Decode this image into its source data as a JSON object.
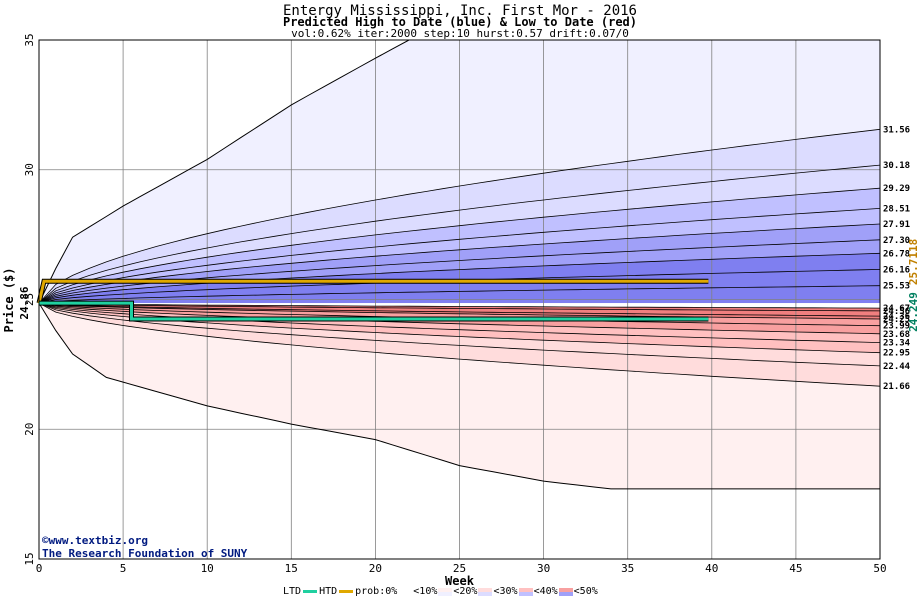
{
  "titles": {
    "line1": "Entergy Mississippi, Inc. First Mor - 2016",
    "line2": "Predicted High to Date (blue) &  Low to Date (red)",
    "line3": "vol:0.62% iter:2000 step:10 hurst:0.57 drift:0.07/0"
  },
  "watermark": {
    "line1": "©www.textbiz.org",
    "line2": "The Research Foundation of SUNY"
  },
  "legend": {
    "ltd": "LTD",
    "htd": "HTD",
    "prob0": "prob:0%",
    "lt10": "<10%",
    "lt20": "<20%",
    "lt30": "<30%",
    "lt40": "<40%",
    "lt50": "<50%"
  },
  "colors": {
    "htd": "#e0a800",
    "ltd": "#20d0a0",
    "blue_bands": [
      "#f0f0ff",
      "#dcdcff",
      "#c0c0ff",
      "#a0a0f8",
      "#7f7ff0"
    ],
    "red_bands": [
      "#fff0f0",
      "#ffdcdc",
      "#ffc0c0",
      "#f8a0a0",
      "#f07f7f"
    ],
    "current_price_label": "#008060",
    "htd_end_label": "#c08000"
  },
  "chart_data": {
    "type": "area",
    "xlabel": "Week",
    "ylabel": "Price ($)",
    "xlim": [
      0,
      50
    ],
    "ylim": [
      15,
      35
    ],
    "xticks": [
      0,
      5,
      10,
      15,
      20,
      25,
      30,
      35,
      40,
      45,
      50
    ],
    "yticks": [
      15,
      20,
      25,
      30,
      35
    ],
    "grid": true,
    "start_price": 24.86,
    "start_price_label": "24.86",
    "last_ltd_label": "24.249",
    "last_htd_label": "25.7118",
    "upper_envelope": [
      [
        0,
        24.86
      ],
      [
        1,
        26.2
      ],
      [
        2,
        27.4
      ],
      [
        5,
        28.6
      ],
      [
        10,
        30.4
      ],
      [
        15,
        32.5
      ],
      [
        20,
        34.3
      ],
      [
        22,
        35
      ]
    ],
    "lower_envelope": [
      [
        0,
        24.86
      ],
      [
        1,
        23.8
      ],
      [
        2,
        22.9
      ],
      [
        4,
        22.0
      ],
      [
        10,
        20.9
      ],
      [
        15,
        20.2
      ],
      [
        20,
        19.6
      ],
      [
        25,
        18.6
      ],
      [
        30,
        18.0
      ],
      [
        34,
        17.7
      ],
      [
        50,
        17.7
      ]
    ],
    "upper_percentile_end_values": [
      31.56,
      30.18,
      29.29,
      28.51,
      27.91,
      27.3,
      26.78,
      26.16,
      25.53
    ],
    "upper_percentile_end_labels": [
      "31.56",
      "30.18",
      "29.29",
      "28.51",
      "27.91",
      "27.30",
      "26.78",
      "26.16",
      "25.53"
    ],
    "lower_percentile_end_values": [
      24.67,
      24.56,
      24.36,
      24.25,
      23.99,
      23.68,
      23.34,
      22.95,
      22.44,
      21.66
    ],
    "lower_percentile_end_labels": [
      "24.67",
      "24.56",
      "24.36",
      "24.25",
      "23.99",
      "23.68",
      "23.34",
      "22.95",
      "22.44",
      "21.66"
    ],
    "series": [
      {
        "name": "HTD",
        "points": [
          [
            0,
            24.86
          ],
          [
            0.3,
            25.7
          ],
          [
            39.8,
            25.7
          ]
        ]
      },
      {
        "name": "LTD",
        "points": [
          [
            0,
            24.86
          ],
          [
            0.3,
            24.86
          ],
          [
            5.5,
            24.86
          ],
          [
            5.5,
            24.25
          ],
          [
            39.8,
            24.25
          ]
        ]
      }
    ]
  }
}
